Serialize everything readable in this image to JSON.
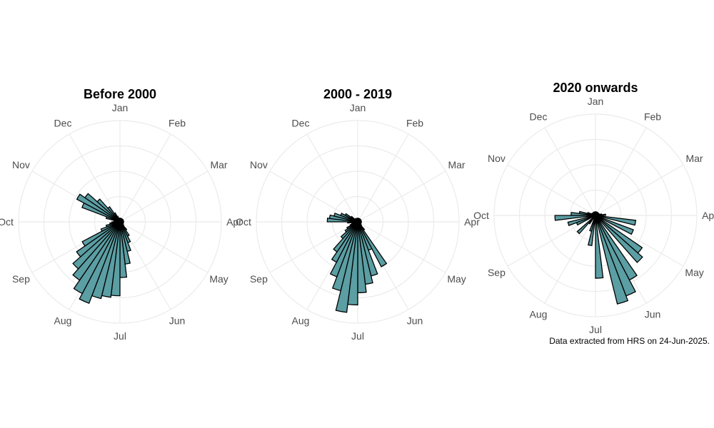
{
  "caption": "Data extracted from HRS on 24-Jun-2025.",
  "colors": {
    "bar_fill": "#5b9ea3",
    "bar_stroke": "#000000",
    "grid": "#ebebeb"
  },
  "months": [
    "Jan",
    "Feb",
    "Mar",
    "Apr",
    "May",
    "Jun",
    "Jul",
    "Aug",
    "Sep",
    "Oct",
    "Nov",
    "Dec"
  ],
  "chart_data": [
    {
      "type": "bar",
      "polar": true,
      "title": "Before 2000",
      "xlabel": "",
      "ylabel": "",
      "grid": true,
      "theta_labels": [
        "Jan",
        "Feb",
        "Mar",
        "Apr",
        "May",
        "Jun",
        "Jul",
        "Aug",
        "Sep",
        "Oct",
        "Nov",
        "Dec"
      ],
      "r_max": 100,
      "values": [
        0,
        0,
        0,
        0,
        0,
        0,
        0,
        0,
        0,
        0,
        0,
        0,
        0,
        0,
        0,
        0,
        0,
        0,
        2,
        5,
        10,
        16,
        22,
        30,
        42,
        55,
        73,
        75,
        78,
        86,
        80,
        70,
        62,
        52,
        42,
        20,
        14,
        10,
        8,
        6,
        5,
        14,
        40,
        48,
        42,
        30,
        18,
        10,
        6,
        4,
        2,
        0
      ]
    },
    {
      "type": "bar",
      "polar": true,
      "title": "2000 - 2019",
      "xlabel": "",
      "ylabel": "",
      "grid": true,
      "theta_labels": [
        "Jan",
        "Feb",
        "Mar",
        "Apr",
        "May",
        "Jun",
        "Jul",
        "Aug",
        "Sep",
        "Oct",
        "Nov",
        "Dec"
      ],
      "r_max": 100,
      "values": [
        0,
        0,
        0,
        0,
        0,
        0,
        0,
        0,
        0,
        0,
        0,
        0,
        0,
        0,
        0,
        0,
        0,
        0,
        2,
        5,
        10,
        50,
        30,
        55,
        62,
        70,
        82,
        90,
        70,
        58,
        45,
        36,
        22,
        15,
        12,
        8,
        6,
        6,
        10,
        30,
        28,
        24,
        18,
        14,
        8,
        4,
        2,
        0,
        0,
        0,
        0,
        0
      ]
    },
    {
      "type": "bar",
      "polar": true,
      "title": "2020 onwards",
      "xlabel": "",
      "ylabel": "",
      "grid": true,
      "theta_labels": [
        "Jan",
        "Feb",
        "Mar",
        "Apr",
        "May",
        "Jun",
        "Jul",
        "Aug",
        "Sep",
        "Oct",
        "Nov",
        "Dec"
      ],
      "r_max": 100,
      "values": [
        0,
        0,
        0,
        0,
        0,
        0,
        0,
        0,
        0,
        2,
        4,
        6,
        10,
        0,
        40,
        0,
        40,
        0,
        56,
        62,
        0,
        72,
        85,
        90,
        0,
        62,
        0,
        30,
        16,
        0,
        0,
        10,
        24,
        0,
        0,
        20,
        28,
        0,
        40,
        24,
        16,
        8,
        4,
        2,
        0,
        0,
        0,
        0,
        0,
        0,
        0,
        0
      ]
    }
  ]
}
